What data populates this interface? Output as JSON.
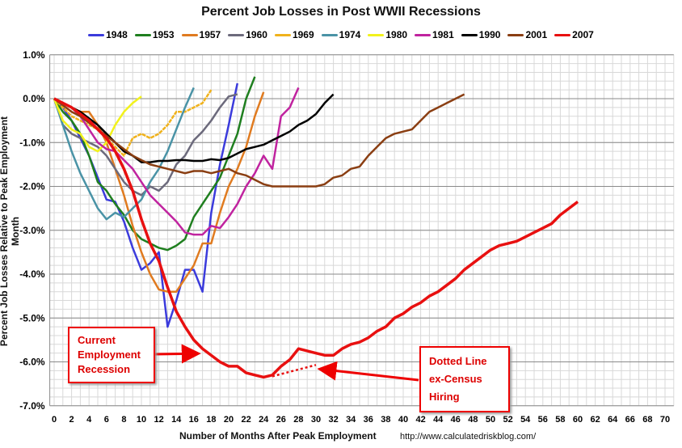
{
  "chart_data": {
    "type": "line",
    "title": "Percent Job Losses in Post WWII Recessions",
    "xlabel": "Number of Months After Peak Employment",
    "ylabel": "Percent Job Losses Relative to Peak Employment Month",
    "source": "http://www.calculatedriskblog.com/",
    "xlim": [
      0,
      70
    ],
    "ylim": [
      -7,
      1
    ],
    "xticks": [
      "0",
      "2",
      "4",
      "6",
      "8",
      "10",
      "12",
      "14",
      "16",
      "18",
      "20",
      "22",
      "24",
      "26",
      "28",
      "30",
      "32",
      "34",
      "36",
      "38",
      "40",
      "42",
      "44",
      "46",
      "48",
      "50",
      "52",
      "54",
      "56",
      "58",
      "60",
      "62",
      "64",
      "66",
      "68",
      "70"
    ],
    "yticks": [
      "1.0%",
      "0.0%",
      "-1.0%",
      "-2.0%",
      "-3.0%",
      "-4.0%",
      "-5.0%",
      "-6.0%",
      "-7.0%"
    ],
    "grid": true,
    "legend": "top",
    "series": [
      {
        "name": "1948",
        "color": "#3b3bdc",
        "values": [
          0,
          -0.2,
          -0.5,
          -0.9,
          -1.3,
          -1.8,
          -2.3,
          -2.35,
          -2.8,
          -3.4,
          -3.9,
          -3.75,
          -3.5,
          -5.2,
          -4.6,
          -3.9,
          -3.9,
          -4.4,
          -2.6,
          -1.5,
          -0.6,
          0.35
        ]
      },
      {
        "name": "1953",
        "color": "#1f7f1f",
        "values": [
          0,
          -0.3,
          -0.5,
          -0.8,
          -1.3,
          -1.9,
          -2.1,
          -2.4,
          -2.65,
          -3.0,
          -3.2,
          -3.3,
          -3.4,
          -3.45,
          -3.35,
          -3.2,
          -2.7,
          -2.4,
          -2.1,
          -1.8,
          -1.3,
          -0.8,
          0,
          0.5
        ]
      },
      {
        "name": "1957",
        "color": "#e07b20",
        "values": [
          0,
          -0.1,
          -0.2,
          -0.3,
          -0.3,
          -0.6,
          -1.0,
          -1.6,
          -2.2,
          -2.9,
          -3.5,
          -4.0,
          -4.35,
          -4.4,
          -4.4,
          -4.1,
          -3.8,
          -3.3,
          -3.3,
          -2.6,
          -2.0,
          -1.6,
          -1.1,
          -0.4,
          0.15
        ]
      },
      {
        "name": "1960",
        "color": "#6c6a7c",
        "values": [
          0,
          -0.6,
          -0.8,
          -0.9,
          -1.0,
          -1.1,
          -1.3,
          -1.6,
          -1.9,
          -2.1,
          -2.2,
          -2.0,
          -2.1,
          -1.9,
          -1.5,
          -1.3,
          -0.95,
          -0.75,
          -0.5,
          -0.2,
          0.05,
          0.1
        ]
      },
      {
        "name": "1969",
        "color": "#f0b21c",
        "dotted": true,
        "values": [
          0,
          -0.2,
          -0.4,
          -0.5,
          -0.6,
          -0.7,
          -0.9,
          -1.1,
          -1.3,
          -0.9,
          -0.8,
          -0.9,
          -0.8,
          -0.6,
          -0.3,
          -0.3,
          -0.2,
          -0.1,
          0.2
        ]
      },
      {
        "name": "1974",
        "color": "#4a93a6",
        "values": [
          0,
          -0.6,
          -1.2,
          -1.7,
          -2.1,
          -2.5,
          -2.75,
          -2.6,
          -2.7,
          -2.5,
          -2.3,
          -1.9,
          -1.6,
          -1.2,
          -0.7,
          -0.2,
          0.25
        ]
      },
      {
        "name": "1980",
        "color": "#f2f21c",
        "values": [
          0,
          -0.5,
          -0.7,
          -0.8,
          -1.1,
          -1.2,
          -1.0,
          -0.6,
          -0.3,
          -0.1,
          0.05
        ]
      },
      {
        "name": "1981",
        "color": "#c0239f",
        "values": [
          0,
          -0.1,
          -0.2,
          -0.4,
          -0.7,
          -1.0,
          -1.15,
          -1.2,
          -1.4,
          -1.6,
          -1.9,
          -2.2,
          -2.4,
          -2.6,
          -2.8,
          -3.05,
          -3.1,
          -3.1,
          -2.9,
          -2.95,
          -2.7,
          -2.4,
          -2.0,
          -1.7,
          -1.3,
          -1.6,
          -0.4,
          -0.2,
          0.25
        ]
      },
      {
        "name": "1990",
        "color": "#000000",
        "values": [
          0,
          -0.1,
          -0.2,
          -0.3,
          -0.45,
          -0.6,
          -0.8,
          -1.0,
          -1.2,
          -1.3,
          -1.45,
          -1.45,
          -1.42,
          -1.42,
          -1.4,
          -1.4,
          -1.42,
          -1.42,
          -1.38,
          -1.4,
          -1.35,
          -1.25,
          -1.15,
          -1.1,
          -1.05,
          -0.95,
          -0.85,
          -0.75,
          -0.6,
          -0.5,
          -0.35,
          -0.1,
          0.1
        ]
      },
      {
        "name": "2001",
        "color": "#8a3e12",
        "values": [
          0,
          -0.15,
          -0.3,
          -0.4,
          -0.55,
          -0.7,
          -0.85,
          -1.0,
          -1.15,
          -1.3,
          -1.4,
          -1.5,
          -1.55,
          -1.6,
          -1.65,
          -1.7,
          -1.65,
          -1.65,
          -1.7,
          -1.65,
          -1.6,
          -1.7,
          -1.75,
          -1.85,
          -1.95,
          -2.0,
          -2.0,
          -2.0,
          -2.0,
          -2.0,
          -2.0,
          -1.95,
          -1.8,
          -1.75,
          -1.6,
          -1.55,
          -1.3,
          -1.1,
          -0.9,
          -0.8,
          -0.75,
          -0.7,
          -0.5,
          -0.3,
          -0.2,
          -0.1,
          0,
          0.1
        ]
      },
      {
        "name": "2007",
        "color": "#e81010",
        "values": [
          0,
          -0.1,
          -0.2,
          -0.35,
          -0.5,
          -0.7,
          -0.9,
          -1.2,
          -1.6,
          -2.1,
          -2.75,
          -3.3,
          -3.7,
          -4.3,
          -4.85,
          -5.2,
          -5.5,
          -5.7,
          -5.85,
          -6.0,
          -6.1,
          -6.1,
          -6.25,
          -6.3,
          -6.35,
          -6.3,
          -6.1,
          -5.95,
          -5.7,
          -5.75,
          -5.8,
          -5.85,
          -5.85,
          -5.7,
          -5.6,
          -5.55,
          -5.45,
          -5.3,
          -5.2,
          -5.0,
          -4.9,
          -4.75,
          -4.65,
          -4.5,
          -4.4,
          -4.25,
          -4.1,
          -3.9,
          -3.75,
          -3.6,
          -3.45,
          -3.35,
          -3.3,
          -3.25,
          -3.15,
          -3.05,
          -2.95,
          -2.85,
          -2.65,
          -2.5,
          -2.35
        ]
      }
    ],
    "ex_census": {
      "color": "#e81010",
      "x": [
        25,
        30
      ],
      "y": [
        -6.33,
        -6.07
      ]
    },
    "annotations": [
      {
        "text": "Current Employment Recession",
        "lines": [
          "Current",
          "Employment",
          "Recession"
        ],
        "target": [
          16,
          -5.7
        ]
      },
      {
        "text": "Dotted Line ex-Census Hiring",
        "lines": [
          "Dotted Line",
          "ex-Census",
          "Hiring"
        ],
        "target": [
          30.5,
          -6.15
        ]
      }
    ]
  }
}
